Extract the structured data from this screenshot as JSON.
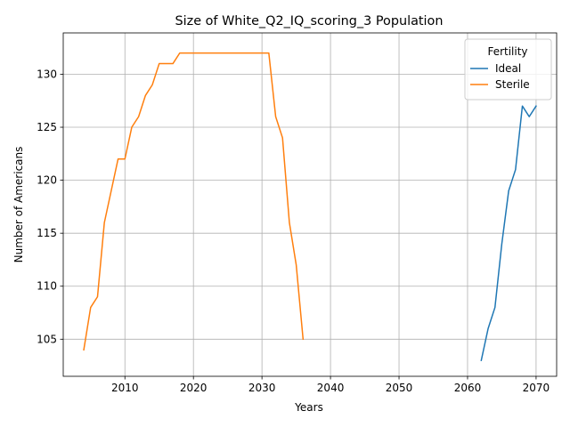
{
  "chart_data": {
    "type": "line",
    "title": "Size of White_Q2_IQ_scoring_3 Population",
    "xlabel": "Years",
    "ylabel": "Number of Americans",
    "xlim": [
      2001,
      2073
    ],
    "ylim": [
      101.5,
      133.9
    ],
    "xticks": [
      2010,
      2020,
      2030,
      2040,
      2050,
      2060,
      2070
    ],
    "yticks": [
      105,
      110,
      115,
      120,
      125,
      130
    ],
    "grid": true,
    "legend": {
      "title": "Fertility",
      "placement": "top-right"
    },
    "series": [
      {
        "name": "Ideal",
        "color": "#1f77b4",
        "x": [
          2062,
          2063,
          2064,
          2065,
          2066,
          2067,
          2068,
          2069,
          2070
        ],
        "y": [
          103,
          106,
          108,
          114,
          119,
          121,
          127,
          126,
          127
        ]
      },
      {
        "name": "Sterile",
        "color": "#ff7f0e",
        "x": [
          2004,
          2005,
          2006,
          2007,
          2008,
          2009,
          2010,
          2011,
          2012,
          2013,
          2014,
          2015,
          2016,
          2017,
          2018,
          2019,
          2020,
          2021,
          2022,
          2023,
          2024,
          2025,
          2026,
          2027,
          2028,
          2029,
          2030,
          2031,
          2032,
          2033,
          2034,
          2035,
          2036
        ],
        "y": [
          104,
          108,
          109,
          116,
          119,
          122,
          122,
          125,
          126,
          128,
          129,
          131,
          131,
          131,
          132,
          132,
          132,
          132,
          132,
          132,
          132,
          132,
          132,
          132,
          132,
          132,
          132,
          132,
          126,
          124,
          116,
          112,
          105
        ]
      }
    ]
  }
}
